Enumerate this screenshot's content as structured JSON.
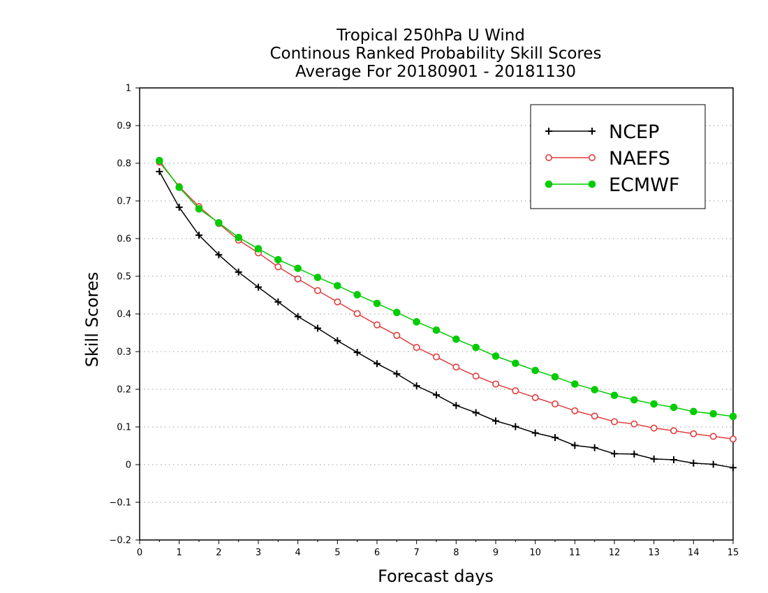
{
  "chart_data": {
    "type": "line",
    "title_lines": [
      "Tropical 250hPa U Wind",
      "Continous Ranked Probability Skill Scores",
      "Average For 20180901 - 20181130"
    ],
    "xlabel": "Forecast days",
    "ylabel": "Skill Scores",
    "xlim": [
      0,
      15
    ],
    "ylim": [
      -0.2,
      1
    ],
    "xticks": [
      0,
      1,
      2,
      3,
      4,
      5,
      6,
      7,
      8,
      9,
      10,
      11,
      12,
      13,
      14,
      15
    ],
    "yticks": [
      -0.2,
      -0.1,
      0,
      0.1,
      0.2,
      0.3,
      0.4,
      0.5,
      0.6,
      0.7,
      0.8,
      0.9,
      1
    ],
    "ytick_labels": [
      "−0.2",
      "−0.1",
      "0",
      "0.1",
      "0.2",
      "0.3",
      "0.4",
      "0.5",
      "0.6",
      "0.7",
      "0.8",
      "0.9",
      "1"
    ],
    "grid": "horizontal dotted",
    "legend_position": "top-right",
    "x": [
      0.5,
      1,
      1.5,
      2,
      2.5,
      3,
      3.5,
      4,
      4.5,
      5,
      5.5,
      6,
      6.5,
      7,
      7.5,
      8,
      8.5,
      9,
      9.5,
      10,
      10.5,
      11,
      11.5,
      12,
      12.5,
      13,
      13.5,
      14,
      14.5,
      15
    ],
    "series": [
      {
        "name": "NCEP",
        "color": "#000000",
        "marker": "plus",
        "values": [
          0.778,
          0.683,
          0.609,
          0.557,
          0.511,
          0.471,
          0.432,
          0.393,
          0.362,
          0.329,
          0.298,
          0.268,
          0.241,
          0.209,
          0.185,
          0.157,
          0.138,
          0.116,
          0.101,
          0.084,
          0.072,
          0.051,
          0.045,
          0.029,
          0.028,
          0.015,
          0.013,
          0.004,
          0.001,
          -0.008
        ]
      },
      {
        "name": "NAEFS",
        "color": "#e03c3c",
        "marker": "open-circle",
        "values": [
          0.803,
          0.738,
          0.685,
          0.64,
          0.596,
          0.562,
          0.525,
          0.493,
          0.462,
          0.432,
          0.401,
          0.371,
          0.343,
          0.311,
          0.286,
          0.259,
          0.235,
          0.214,
          0.196,
          0.178,
          0.161,
          0.143,
          0.129,
          0.114,
          0.108,
          0.097,
          0.09,
          0.082,
          0.075,
          0.068
        ]
      },
      {
        "name": "ECMWF",
        "color": "#00cc00",
        "marker": "filled-circle",
        "values": [
          0.807,
          0.736,
          0.679,
          0.642,
          0.603,
          0.573,
          0.544,
          0.521,
          0.497,
          0.475,
          0.451,
          0.428,
          0.404,
          0.379,
          0.357,
          0.333,
          0.311,
          0.288,
          0.269,
          0.25,
          0.233,
          0.214,
          0.199,
          0.184,
          0.172,
          0.161,
          0.152,
          0.141,
          0.135,
          0.128
        ]
      }
    ]
  }
}
